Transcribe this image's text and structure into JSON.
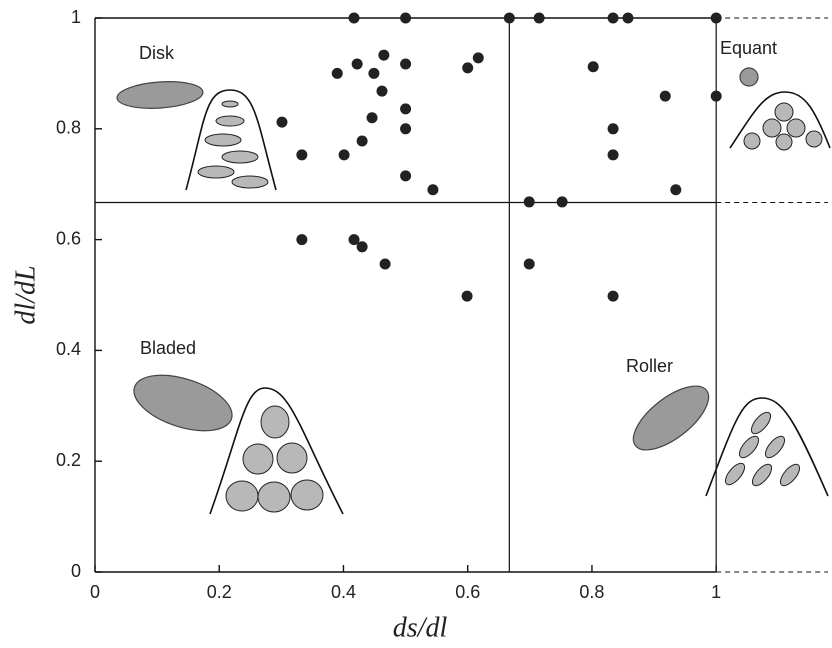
{
  "chart_data": {
    "type": "scatter",
    "x_label": "ds/dl",
    "y_label": "dl/dL",
    "xlim": [
      0,
      1.18
    ],
    "ylim": [
      0,
      1
    ],
    "xticks": [
      0,
      0.2,
      0.4,
      0.6,
      0.8,
      1
    ],
    "yticks": [
      0,
      0.2,
      0.4,
      0.6,
      0.8,
      1
    ],
    "vlines": [
      0.667,
      1
    ],
    "hlines": [
      0.667
    ],
    "color": "#222222",
    "annotations": [
      "Disk",
      "Equant",
      "Bladed",
      "Roller"
    ],
    "x": [
      0.417,
      0.5,
      0.667,
      0.715,
      0.834,
      0.858,
      1.0,
      0.422,
      0.465,
      0.39,
      0.449,
      0.5,
      0.6,
      0.617,
      0.462,
      0.5,
      0.301,
      0.446,
      0.5,
      0.333,
      0.401,
      0.43,
      0.5,
      0.544,
      0.802,
      0.918,
      1.0,
      0.834,
      0.834,
      0.935,
      0.699,
      0.752,
      0.333,
      0.417,
      0.43,
      0.467,
      0.699,
      0.599,
      0.834
    ],
    "values": [
      1,
      1,
      1,
      1,
      1,
      1,
      1,
      0.917,
      0.933,
      0.9,
      0.9,
      0.917,
      0.91,
      0.928,
      0.868,
      0.836,
      0.812,
      0.82,
      0.8,
      0.753,
      0.753,
      0.778,
      0.715,
      0.69,
      0.912,
      0.859,
      0.859,
      0.8,
      0.753,
      0.69,
      0.668,
      0.668,
      0.6,
      0.6,
      0.587,
      0.556,
      0.556,
      0.498,
      0.498
    ]
  }
}
